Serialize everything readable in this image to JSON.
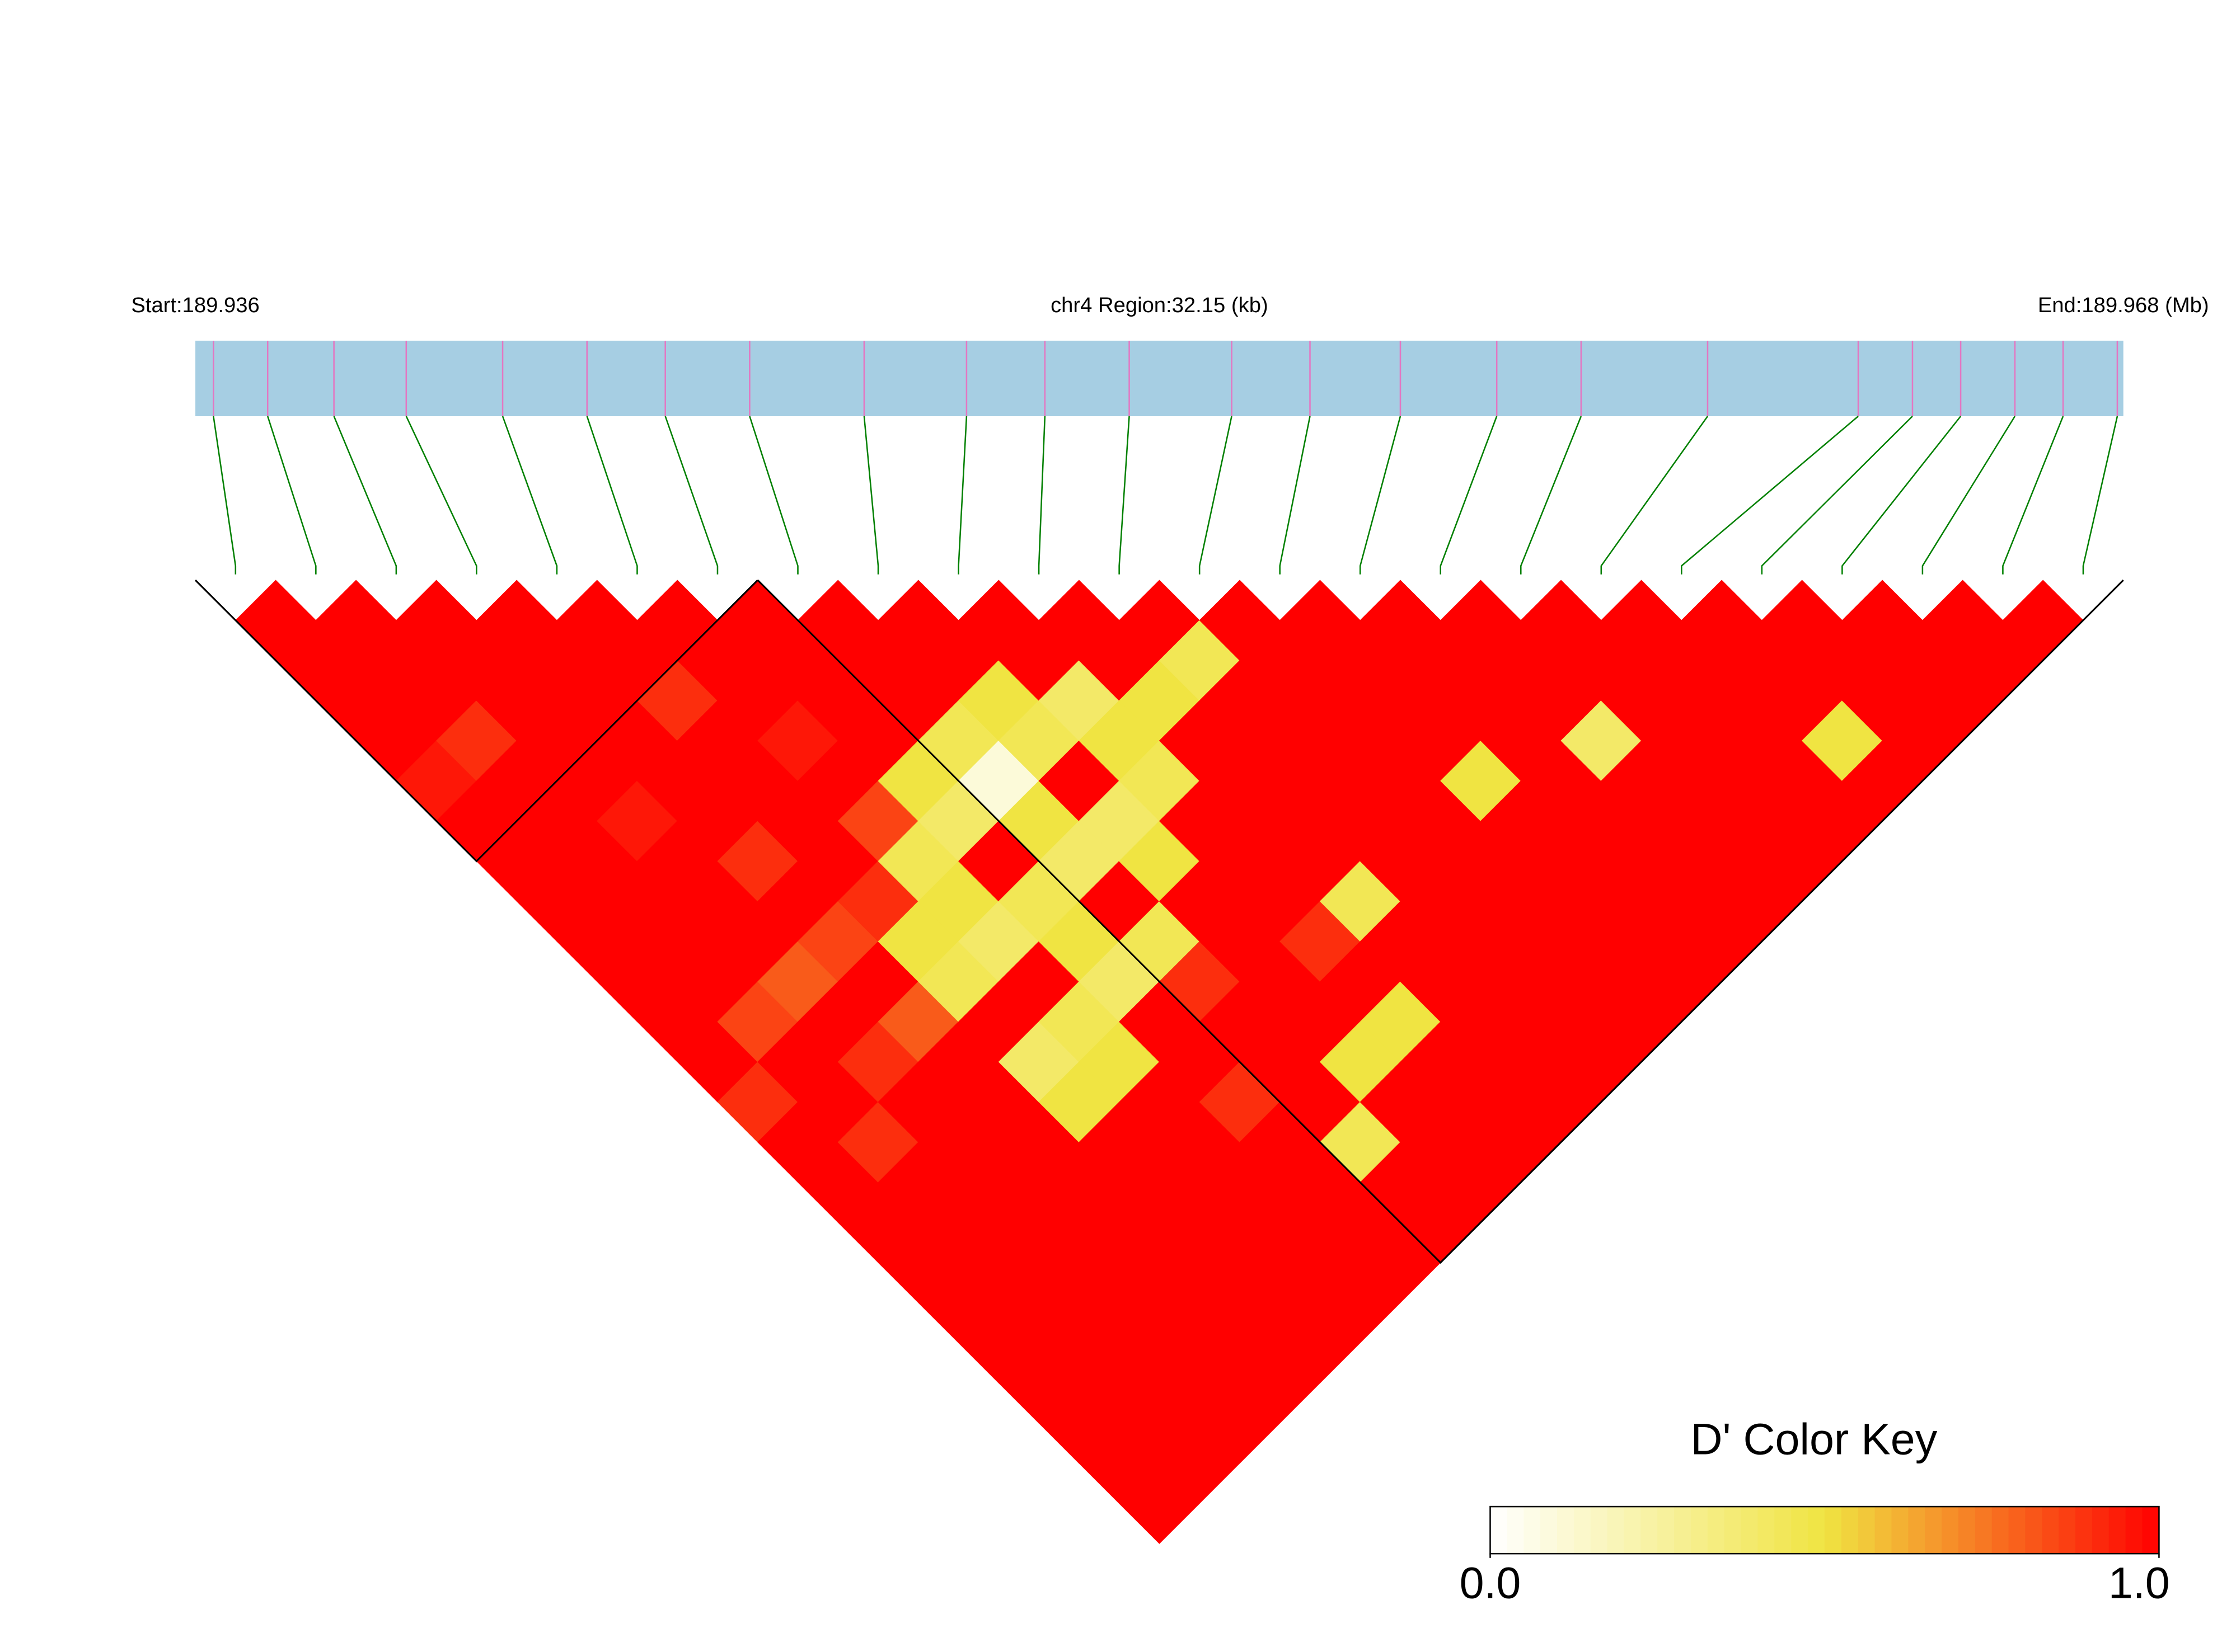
{
  "chart_data": {
    "type": "ld_heatmap",
    "start_label": "Start:189.936",
    "region_label": "chr4 Region:32.15 (kb)",
    "end_label": "End:189.968 (Mb)",
    "xlim": [
      189.936,
      189.968
    ],
    "snp_positions": [
      189.9363,
      189.9372,
      189.9383,
      189.9395,
      189.9411,
      189.9425,
      189.9438,
      189.9452,
      189.9471,
      189.9488,
      189.9501,
      189.9515,
      189.9532,
      189.9545,
      189.956,
      189.9576,
      189.959,
      189.9611,
      189.9636,
      189.9645,
      189.9653,
      189.9662,
      189.967,
      189.9679
    ],
    "dprime": [
      [
        1,
        1,
        1,
        1,
        0.95,
        1,
        1,
        1,
        1,
        1,
        1,
        1,
        0.9,
        1,
        1,
        1,
        1,
        1,
        1,
        1,
        1,
        1,
        1
      ],
      [
        1,
        1,
        1,
        0.9,
        1,
        1,
        1,
        1,
        1,
        1,
        0.85,
        1,
        1,
        0.9,
        1,
        1,
        1,
        1,
        1,
        1,
        1,
        1
      ],
      [
        1,
        1,
        1,
        1,
        1,
        0.95,
        1,
        1,
        1,
        0.8,
        1,
        0.9,
        1,
        1,
        1,
        1,
        1,
        1,
        1,
        1,
        1
      ],
      [
        1,
        1,
        1,
        1,
        1,
        1,
        0.9,
        1,
        0.85,
        1,
        0.8,
        1,
        1,
        1,
        1,
        1,
        1,
        1,
        1,
        1
      ],
      [
        1,
        1,
        0.9,
        1,
        1,
        1,
        1,
        0.9,
        0.5,
        0.45,
        1,
        0.4,
        0.5,
        1,
        1,
        1,
        1,
        1,
        1
      ],
      [
        1,
        1,
        1,
        0.95,
        1,
        0.85,
        0.45,
        0.5,
        0.4,
        1,
        0.45,
        0.5,
        1,
        1,
        1,
        1,
        1,
        1
      ],
      [
        1,
        1,
        1,
        1,
        0.5,
        0.4,
        1,
        0.45,
        0.5,
        0.4,
        1,
        1,
        0.9,
        1,
        1,
        1,
        1
      ],
      [
        1,
        1,
        1,
        0.45,
        0.1,
        0.5,
        0.4,
        1,
        0.45,
        0.9,
        1,
        1,
        1,
        0.45,
        1,
        1
      ],
      [
        1,
        1,
        0.5,
        0.45,
        1,
        0.4,
        0.5,
        1,
        1,
        1,
        1,
        0.5,
        1,
        1,
        1
      ],
      [
        1,
        1,
        0.4,
        0.5,
        0.45,
        1,
        1,
        1,
        0.9,
        1,
        0.5,
        1,
        1,
        1
      ],
      [
        1,
        1,
        0.5,
        1,
        1,
        1,
        1,
        0.45,
        1,
        1,
        1,
        1,
        1
      ],
      [
        1,
        0.45,
        1,
        1,
        1,
        1,
        1,
        1,
        1,
        1,
        1,
        1
      ],
      [
        1,
        1,
        1,
        1,
        1,
        1,
        1,
        1,
        1,
        1,
        1
      ],
      [
        1,
        1,
        1,
        1,
        0.5,
        1,
        1,
        1,
        1,
        1
      ],
      [
        1,
        1,
        1,
        1,
        1,
        1,
        1,
        1,
        1
      ],
      [
        1,
        1,
        1,
        0.4,
        1,
        1,
        1,
        1
      ],
      [
        1,
        1,
        1,
        1,
        1,
        1,
        1
      ],
      [
        1,
        1,
        1,
        1,
        1,
        1
      ],
      [
        1,
        1,
        1,
        0.5,
        1
      ],
      [
        1,
        1,
        1,
        1
      ],
      [
        1,
        1,
        1
      ],
      [
        1,
        1
      ],
      [
        1
      ]
    ],
    "blocks": [
      [
        0,
        6
      ],
      [
        7,
        23
      ]
    ],
    "bar_color": "#a6cee3",
    "snp_line_color": "#e377c2",
    "link_color": "#008000",
    "colors": [
      "#ffffff",
      "#f0e442",
      "#ff0000"
    ],
    "color_key": {
      "title": "D' Color Key",
      "lim": [
        0,
        1
      ],
      "ticks": [
        {
          "value": 0,
          "label": "0.0"
        },
        {
          "value": 1,
          "label": "1.0"
        }
      ]
    }
  }
}
